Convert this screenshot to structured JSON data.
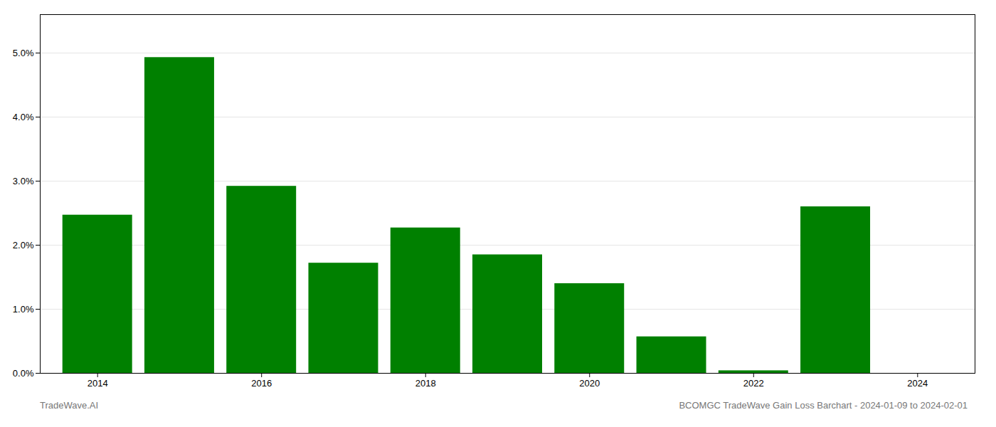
{
  "chart_data": {
    "type": "bar",
    "x": [
      2014,
      2015,
      2016,
      2017,
      2018,
      2019,
      2020,
      2021,
      2022,
      2023
    ],
    "values": [
      0.0247,
      0.0493,
      0.0292,
      0.0172,
      0.0227,
      0.0185,
      0.014,
      0.0057,
      0.0004,
      0.026
    ],
    "color": "#008000",
    "xlim": [
      2013.3,
      2024.7
    ],
    "xticks": [
      2014,
      2016,
      2018,
      2020,
      2022,
      2024
    ],
    "ylim": [
      0,
      0.056
    ],
    "yticks": [
      {
        "value": 0.0,
        "label": "0.0%"
      },
      {
        "value": 0.01,
        "label": "1.0%"
      },
      {
        "value": 0.02,
        "label": "2.0%"
      },
      {
        "value": 0.03,
        "label": "3.0%"
      },
      {
        "value": 0.04,
        "label": "4.0%"
      },
      {
        "value": 0.05,
        "label": "5.0%"
      }
    ],
    "grid": true,
    "annotations": [
      "TradeWave.AI",
      "BCOMGC TradeWave Gain Loss Barchart - 2024-01-09 to 2024-02-01"
    ]
  }
}
